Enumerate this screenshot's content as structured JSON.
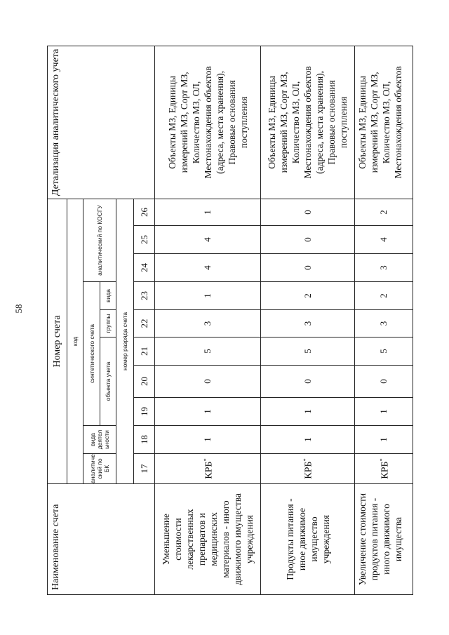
{
  "page_number": "58",
  "header": {
    "account_name": "Наименование счета",
    "account_number": "Номер счета",
    "code": "код",
    "analytic_bk": "аналитиче ский по БК",
    "activity_type": "вида деятел ьности",
    "synthetic": "синтетического счета",
    "accounting_object": "объекта учета",
    "group": "группы",
    "type": "вида",
    "analytic_kosgu": "аналитический по КОСГУ",
    "digit_number": "номер разряда счета",
    "detail": "Детализация аналитического учета",
    "digits": [
      "17",
      "18",
      "19",
      "20",
      "21",
      "22",
      "23",
      "24",
      "25",
      "26"
    ]
  },
  "rows": [
    {
      "name": "Уменьшение\nстоимости\nлекарственных\nпрепаратов и\nмедицинских\nматериалов - иного\nдвижимого имущества\nучреждения",
      "krb": "КРБ",
      "krb_mark": "*",
      "digits": [
        "1",
        "1",
        "0",
        "5",
        "3",
        "1",
        "4",
        "4",
        "1"
      ],
      "detail": "Объекты МЗ, Единицы\nизмерений МЗ, Сорт МЗ,\nКоличество МЗ, ОЛ,\nМестонахождения объектов\n(адреса, места хранения),\nПравовые основания\nпоступления"
    },
    {
      "name": "Продукты питания -\nиное движимое\nимущество\nучреждения",
      "krb": "КРБ",
      "krb_mark": "*",
      "digits": [
        "1",
        "1",
        "0",
        "5",
        "3",
        "2",
        "0",
        "0",
        "0"
      ],
      "detail": "Объекты МЗ, Единицы\nизмерений МЗ, Сорт МЗ,\nКоличество МЗ, ОЛ,\nМестонахождения объектов\n(адреса, места хранения),\nПравовые основания\nпоступления"
    },
    {
      "name": "Увеличение стоимости\nпродуктов питания -\nиного движимого\nимущества",
      "krb": "КРБ",
      "krb_mark": "*",
      "digits": [
        "1",
        "1",
        "0",
        "5",
        "3",
        "2",
        "3",
        "4",
        "2"
      ],
      "detail": "Объекты МЗ, Единицы\nизмерений МЗ, Сорт МЗ,\nКоличество МЗ, ОЛ,\nМестонахождения объектов"
    }
  ]
}
